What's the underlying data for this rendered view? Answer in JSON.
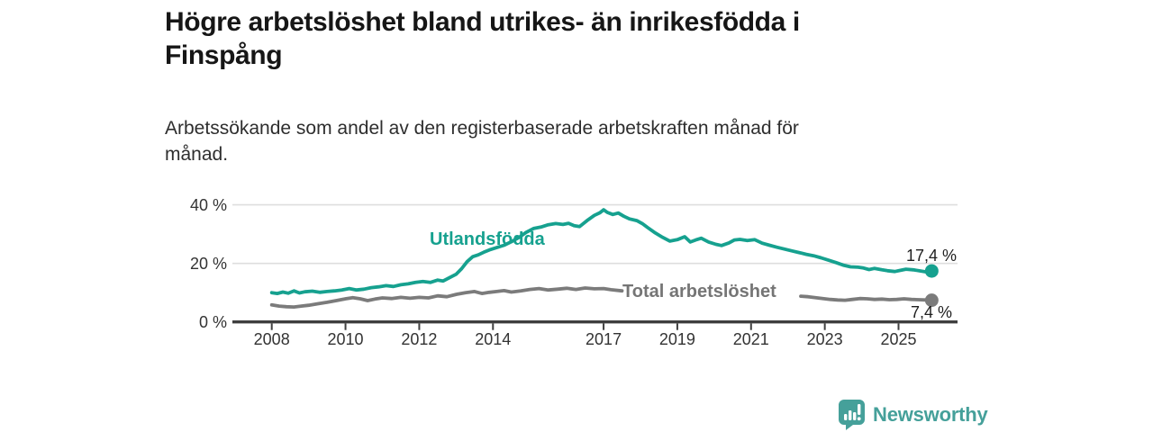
{
  "title_lines": [
    "Högre arbetslöshet bland utrikes- än inrikesfödda i",
    "Finspång"
  ],
  "subtitle_lines": [
    "Arbetssökande som andel av den registerbaserade arbetskraften månad för",
    "månad."
  ],
  "chart_data": {
    "type": "line",
    "title": "Högre arbetslöshet bland utrikes- än inrikesfödda i Finspång",
    "subtitle": "Arbetssökande som andel av den registerbaserade arbetskraften månad för månad.",
    "xlabel": "",
    "ylabel": "",
    "x_range": [
      2007.8,
      2026.1
    ],
    "ylim": [
      0,
      42
    ],
    "grid": "horizontal",
    "axis_color": "#3f3f3f",
    "grid_color": "#dedede",
    "y_ticks": [
      {
        "value": 0,
        "label": "0 %"
      },
      {
        "value": 20,
        "label": "20 %"
      },
      {
        "value": 40,
        "label": "40 %"
      }
    ],
    "x_ticks": [
      {
        "year": 2008,
        "label": "2008"
      },
      {
        "year": 2010,
        "label": "2010"
      },
      {
        "year": 2012,
        "label": "2012"
      },
      {
        "year": 2014,
        "label": "2014"
      },
      {
        "year": 2017,
        "label": "2017"
      },
      {
        "year": 2019,
        "label": "2019"
      },
      {
        "year": 2021,
        "label": "2021"
      },
      {
        "year": 2023,
        "label": "2023"
      },
      {
        "year": 2025,
        "label": "2025"
      }
    ],
    "series": [
      {
        "name": "Utlandsfödda",
        "color": "#16a18f",
        "end_label": "17,4 %",
        "end_value": 17.4,
        "segments": [
          [
            [
              2008.0,
              10.0
            ],
            [
              2008.15,
              9.7
            ],
            [
              2008.3,
              10.2
            ],
            [
              2008.45,
              9.8
            ],
            [
              2008.6,
              10.6
            ],
            [
              2008.75,
              9.9
            ],
            [
              2008.9,
              10.3
            ],
            [
              2009.1,
              10.5
            ],
            [
              2009.3,
              10.1
            ],
            [
              2009.5,
              10.4
            ],
            [
              2009.7,
              10.6
            ],
            [
              2009.9,
              10.9
            ],
            [
              2010.1,
              11.4
            ],
            [
              2010.3,
              10.9
            ],
            [
              2010.5,
              11.2
            ],
            [
              2010.7,
              11.7
            ],
            [
              2010.9,
              12.0
            ],
            [
              2011.1,
              12.4
            ],
            [
              2011.3,
              12.1
            ],
            [
              2011.5,
              12.7
            ],
            [
              2011.7,
              13.0
            ],
            [
              2011.9,
              13.5
            ],
            [
              2012.1,
              13.8
            ],
            [
              2012.3,
              13.5
            ],
            [
              2012.5,
              14.3
            ],
            [
              2012.65,
              14.0
            ],
            [
              2012.8,
              15.0
            ],
            [
              2013.0,
              16.3
            ],
            [
              2013.15,
              18.2
            ],
            [
              2013.3,
              20.6
            ],
            [
              2013.45,
              22.3
            ],
            [
              2013.6,
              22.9
            ],
            [
              2013.75,
              23.8
            ],
            [
              2013.9,
              24.6
            ],
            [
              2014.1,
              25.4
            ],
            [
              2014.3,
              26.2
            ],
            [
              2014.5,
              27.4
            ],
            [
              2014.7,
              28.8
            ],
            [
              2014.9,
              30.6
            ],
            [
              2015.1,
              31.9
            ],
            [
              2015.3,
              32.4
            ],
            [
              2015.5,
              33.2
            ],
            [
              2015.7,
              33.6
            ],
            [
              2015.9,
              33.3
            ],
            [
              2016.05,
              33.7
            ],
            [
              2016.2,
              32.9
            ],
            [
              2016.35,
              32.6
            ],
            [
              2016.55,
              34.6
            ],
            [
              2016.75,
              36.4
            ],
            [
              2016.9,
              37.3
            ],
            [
              2017.0,
              38.3
            ],
            [
              2017.1,
              37.4
            ],
            [
              2017.25,
              36.7
            ],
            [
              2017.4,
              37.2
            ],
            [
              2017.55,
              36.1
            ],
            [
              2017.7,
              35.2
            ],
            [
              2017.9,
              34.6
            ],
            [
              2018.05,
              33.6
            ],
            [
              2018.2,
              32.2
            ],
            [
              2018.4,
              30.4
            ],
            [
              2018.6,
              28.9
            ],
            [
              2018.8,
              27.6
            ],
            [
              2019.0,
              28.1
            ],
            [
              2019.2,
              29.1
            ],
            [
              2019.35,
              27.3
            ],
            [
              2019.5,
              28.0
            ],
            [
              2019.65,
              28.6
            ],
            [
              2019.85,
              27.3
            ],
            [
              2020.05,
              26.5
            ],
            [
              2020.2,
              26.1
            ],
            [
              2020.4,
              27.0
            ],
            [
              2020.55,
              28.0
            ],
            [
              2020.7,
              28.2
            ],
            [
              2020.9,
              27.8
            ],
            [
              2021.1,
              28.1
            ],
            [
              2021.3,
              26.9
            ],
            [
              2021.5,
              26.2
            ],
            [
              2021.7,
              25.5
            ],
            [
              2021.9,
              24.9
            ],
            [
              2022.1,
              24.3
            ],
            [
              2022.3,
              23.7
            ],
            [
              2022.5,
              23.1
            ],
            [
              2022.7,
              22.6
            ],
            [
              2022.9,
              21.9
            ],
            [
              2023.1,
              21.1
            ],
            [
              2023.3,
              20.3
            ],
            [
              2023.5,
              19.4
            ],
            [
              2023.7,
              18.8
            ],
            [
              2023.9,
              18.7
            ],
            [
              2024.05,
              18.4
            ],
            [
              2024.2,
              17.9
            ],
            [
              2024.35,
              18.3
            ],
            [
              2024.55,
              17.8
            ],
            [
              2024.7,
              17.5
            ],
            [
              2024.9,
              17.2
            ],
            [
              2025.05,
              17.6
            ],
            [
              2025.2,
              18.0
            ],
            [
              2025.4,
              17.8
            ],
            [
              2025.6,
              17.4
            ],
            [
              2025.75,
              17.1
            ],
            [
              2025.9,
              17.4
            ]
          ]
        ]
      },
      {
        "name": "Total arbetslöshet",
        "color": "#7b7b7b",
        "end_label": "7,4 %",
        "end_value": 7.4,
        "segments": [
          [
            [
              2008.0,
              5.8
            ],
            [
              2008.2,
              5.4
            ],
            [
              2008.4,
              5.2
            ],
            [
              2008.6,
              5.1
            ],
            [
              2008.8,
              5.4
            ],
            [
              2009.0,
              5.7
            ],
            [
              2009.25,
              6.2
            ],
            [
              2009.5,
              6.7
            ],
            [
              2009.75,
              7.3
            ],
            [
              2010.0,
              7.9
            ],
            [
              2010.2,
              8.3
            ],
            [
              2010.4,
              7.9
            ],
            [
              2010.6,
              7.3
            ],
            [
              2010.8,
              7.8
            ],
            [
              2011.0,
              8.2
            ],
            [
              2011.25,
              8.0
            ],
            [
              2011.5,
              8.4
            ],
            [
              2011.75,
              8.1
            ],
            [
              2012.0,
              8.4
            ],
            [
              2012.25,
              8.2
            ],
            [
              2012.5,
              8.9
            ],
            [
              2012.75,
              8.6
            ],
            [
              2013.0,
              9.4
            ],
            [
              2013.25,
              10.0
            ],
            [
              2013.5,
              10.4
            ],
            [
              2013.7,
              9.7
            ],
            [
              2013.9,
              10.1
            ],
            [
              2014.1,
              10.4
            ],
            [
              2014.3,
              10.7
            ],
            [
              2014.5,
              10.2
            ],
            [
              2014.75,
              10.6
            ],
            [
              2015.0,
              11.1
            ],
            [
              2015.25,
              11.4
            ],
            [
              2015.5,
              10.9
            ],
            [
              2015.75,
              11.2
            ],
            [
              2016.0,
              11.5
            ],
            [
              2016.25,
              11.1
            ],
            [
              2016.5,
              11.6
            ],
            [
              2016.75,
              11.3
            ],
            [
              2017.0,
              11.4
            ],
            [
              2017.2,
              11.0
            ],
            [
              2017.5,
              10.6
            ]
          ],
          [
            [
              2022.35,
              8.8
            ],
            [
              2022.55,
              8.6
            ],
            [
              2022.75,
              8.3
            ],
            [
              2022.95,
              8.0
            ],
            [
              2023.15,
              7.7
            ],
            [
              2023.35,
              7.5
            ],
            [
              2023.55,
              7.4
            ],
            [
              2023.75,
              7.7
            ],
            [
              2023.95,
              8.0
            ],
            [
              2024.15,
              7.9
            ],
            [
              2024.35,
              7.7
            ],
            [
              2024.55,
              7.8
            ],
            [
              2024.75,
              7.6
            ],
            [
              2024.95,
              7.7
            ],
            [
              2025.15,
              7.9
            ],
            [
              2025.35,
              7.7
            ],
            [
              2025.55,
              7.6
            ],
            [
              2025.75,
              7.5
            ],
            [
              2025.9,
              7.4
            ]
          ]
        ]
      }
    ]
  },
  "branding": {
    "logo_text": "Newsworthy",
    "logo_color": "#45a09a",
    "icon": "newsworthy-bar-chart-bubble-icon"
  }
}
